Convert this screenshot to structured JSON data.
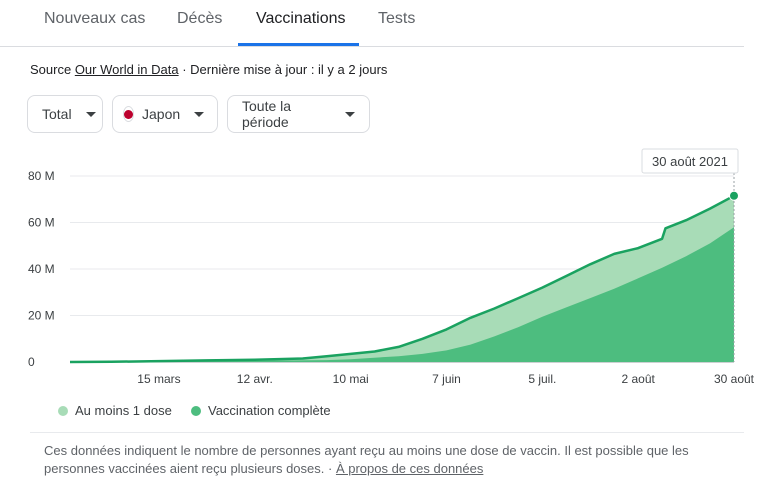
{
  "tabs": [
    {
      "label": "Nouveaux cas"
    },
    {
      "label": "Décès"
    },
    {
      "label": "Vaccinations"
    },
    {
      "label": "Tests"
    }
  ],
  "source": {
    "prefix": "Source ",
    "link": "Our World in Data",
    "suffix": " · Dernière mise à jour : il y a 2 jours"
  },
  "filters": {
    "metric": "Total",
    "country": "Japon",
    "period": "Toute la période"
  },
  "colors": {
    "dose1_fill": "#a8dcb7",
    "full_fill": "#4dbd7f",
    "line": "#1aa260",
    "flag_red": "#bc002d",
    "tab_accent": "#1a73e8"
  },
  "chart_data": {
    "type": "area",
    "tooltip": "30 août 2021",
    "ylim": [
      0,
      80000000
    ],
    "y_ticks": [
      "0",
      "20 M",
      "40 M",
      "60 M",
      "80 M"
    ],
    "x_ticks": [
      "15 mars",
      "12 avr.",
      "10 mai",
      "7 juin",
      "5 juil.",
      "2 août",
      "30 août"
    ],
    "x_start": "2021-02-17",
    "x_end": "2021-08-30",
    "series": [
      {
        "name": "Au moins 1 dose",
        "points": [
          [
            "2021-02-17",
            0
          ],
          [
            "2021-03-01",
            100000
          ],
          [
            "2021-03-15",
            400000
          ],
          [
            "2021-03-29",
            700000
          ],
          [
            "2021-04-12",
            1000000
          ],
          [
            "2021-04-26",
            1500000
          ],
          [
            "2021-05-03",
            2500000
          ],
          [
            "2021-05-10",
            3500000
          ],
          [
            "2021-05-17",
            4500000
          ],
          [
            "2021-05-24",
            6500000
          ],
          [
            "2021-05-31",
            10000000
          ],
          [
            "2021-06-07",
            14000000
          ],
          [
            "2021-06-14",
            19000000
          ],
          [
            "2021-06-21",
            23000000
          ],
          [
            "2021-06-28",
            27500000
          ],
          [
            "2021-07-05",
            32000000
          ],
          [
            "2021-07-12",
            37000000
          ],
          [
            "2021-07-19",
            42000000
          ],
          [
            "2021-07-26",
            46500000
          ],
          [
            "2021-08-02",
            49000000
          ],
          [
            "2021-08-09",
            53000000
          ],
          [
            "2021-08-10",
            57500000
          ],
          [
            "2021-08-16",
            61000000
          ],
          [
            "2021-08-23",
            66000000
          ],
          [
            "2021-08-30",
            71500000
          ]
        ]
      },
      {
        "name": "Vaccination complète",
        "points": [
          [
            "2021-02-17",
            0
          ],
          [
            "2021-03-15",
            200000
          ],
          [
            "2021-04-12",
            500000
          ],
          [
            "2021-05-03",
            800000
          ],
          [
            "2021-05-10",
            1200000
          ],
          [
            "2021-05-24",
            2500000
          ],
          [
            "2021-05-31",
            3500000
          ],
          [
            "2021-06-07",
            5000000
          ],
          [
            "2021-06-14",
            7500000
          ],
          [
            "2021-06-21",
            11000000
          ],
          [
            "2021-06-28",
            15000000
          ],
          [
            "2021-07-05",
            19500000
          ],
          [
            "2021-07-12",
            23500000
          ],
          [
            "2021-07-19",
            27500000
          ],
          [
            "2021-07-26",
            31500000
          ],
          [
            "2021-08-02",
            36000000
          ],
          [
            "2021-08-09",
            40500000
          ],
          [
            "2021-08-16",
            45500000
          ],
          [
            "2021-08-23",
            51000000
          ],
          [
            "2021-08-30",
            58000000
          ]
        ]
      }
    ]
  },
  "legend": {
    "dose1": "Au moins 1 dose",
    "full": "Vaccination complète"
  },
  "footer": {
    "text": "Ces données indiquent le nombre de personnes ayant reçu au moins une dose de vaccin. Il est possible que les personnes vaccinées aient reçu plusieurs doses. · ",
    "link": "À propos de ces données"
  }
}
